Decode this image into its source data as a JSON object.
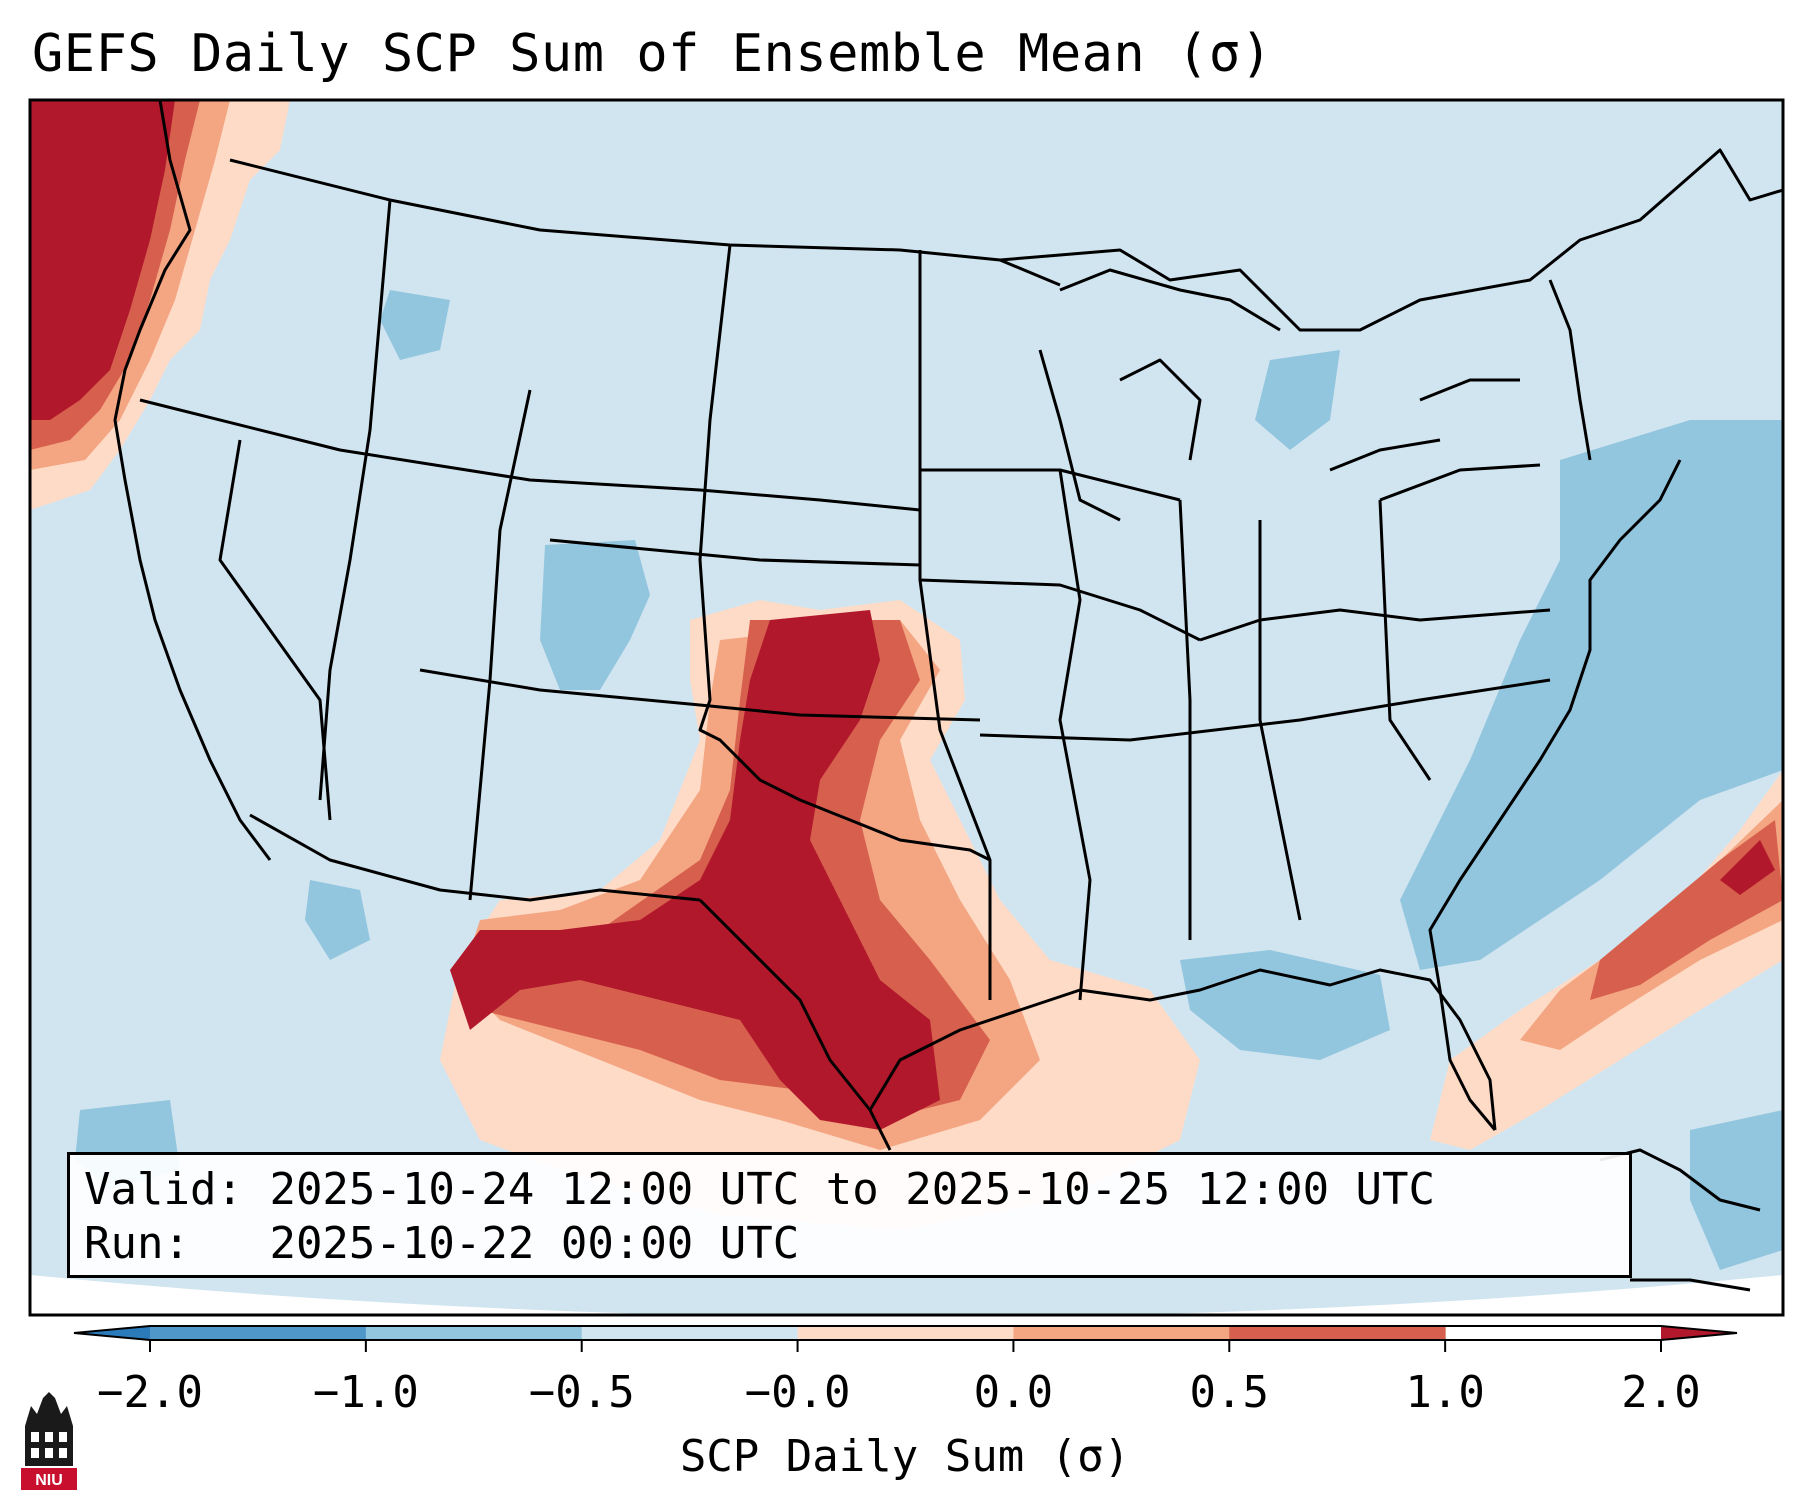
{
  "title": "GEFS Daily SCP Sum of Ensemble Mean (σ)",
  "info": {
    "valid_label": "Valid:",
    "valid_value": "2025-10-24 12:00 UTC to 2025-10-25 12:00 UTC",
    "run_label": "Run:",
    "run_value": "2025-10-22 00:00 UTC"
  },
  "colorbar": {
    "label": "SCP Daily Sum (σ)",
    "ticks": [
      "−2.0",
      "−1.0",
      "−0.5",
      "−0.0",
      "0.0",
      "0.5",
      "1.0",
      "2.0"
    ],
    "bins": [
      {
        "range": "< -2.0",
        "color": "#2b7bba"
      },
      {
        "range": "-2.0 to -1.0",
        "color": "#4f97c9"
      },
      {
        "range": "-1.0 to -0.5",
        "color": "#92c5de"
      },
      {
        "range": "-0.5 to 0.0",
        "color": "#d1e5f0"
      },
      {
        "range": "0.0",
        "color": "#ffffff"
      },
      {
        "range": "0.0 to 0.5",
        "color": "#fddbc7"
      },
      {
        "range": "0.5 to 1.0",
        "color": "#f4a582"
      },
      {
        "range": "1.0 to 2.0",
        "color": "#d6604d"
      },
      {
        "range": "> 2.0",
        "color": "#b2182b"
      }
    ]
  },
  "logo": {
    "text": "NIU"
  },
  "colors": {
    "ocean": "#d1e5f0",
    "land": "#d1e5f0",
    "strong_positive": "#b2182b",
    "moderate_positive": "#d6604d",
    "weak_positive": "#f4a582",
    "slight_positive": "#fddbc7",
    "slight_negative": "#92c5de",
    "moderate_negative": "#92c5de"
  }
}
